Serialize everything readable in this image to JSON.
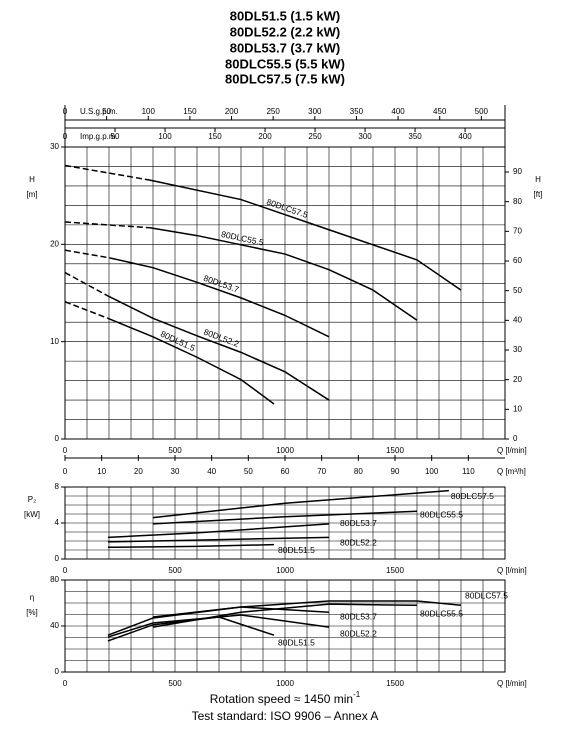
{
  "header": {
    "lines": [
      "80DL51.5 (1.5 kW)",
      "80DL52.2 (2.2 kW)",
      "80DL53.7 (3.7 kW)",
      "80DLC55.5 (5.5 kW)",
      "80DLC57.5 (7.5 kW)"
    ]
  },
  "footer": {
    "line1": "Rotation speed ≈ 1450 min",
    "line1_sup": "-1",
    "line2": "Test standard: ISO 9906 – Annex A"
  },
  "chart_data": [
    {
      "type": "line",
      "ylabel": "H",
      "yunit": "[m]",
      "y2label": "H",
      "y2unit": "[ft]",
      "xlabel": "Q [l/min]",
      "xlim": [
        0,
        2000
      ],
      "xticks": [
        0,
        500,
        1000,
        1500
      ],
      "xgrid": [
        0,
        100,
        200,
        300,
        400,
        500,
        600,
        700,
        800,
        900,
        1000,
        1100,
        1200,
        1300,
        1400,
        1500,
        1600,
        1700,
        1800,
        1900,
        2000
      ],
      "ylim": [
        0,
        30
      ],
      "yticks": [
        0,
        10,
        20,
        30
      ],
      "ygrid": [
        0,
        2,
        4,
        6,
        8,
        10,
        12,
        14,
        16,
        18,
        20,
        22,
        24,
        26,
        28,
        30
      ],
      "y2lim": [
        0,
        98.43
      ],
      "y2ticks": [
        0,
        10,
        20,
        30,
        40,
        50,
        60,
        70,
        80,
        90
      ],
      "top_axes": [
        {
          "label": "U.S.g.p.m.",
          "lim": [
            0,
            528.4
          ],
          "ticks": [
            0,
            50,
            100,
            150,
            200,
            250,
            300,
            350,
            400,
            450,
            500
          ]
        },
        {
          "label": "Imp.g.p.m.",
          "lim": [
            0,
            439.9
          ],
          "ticks": [
            0,
            50,
            100,
            150,
            200,
            250,
            300,
            350,
            400
          ]
        }
      ],
      "x2": {
        "label": "Q [m³/h]",
        "lim": [
          0,
          120
        ],
        "ticks": [
          0,
          10,
          20,
          30,
          40,
          50,
          60,
          70,
          80,
          90,
          100,
          110
        ]
      },
      "line_color": "#000",
      "dashed_points": 2,
      "series": [
        {
          "name": "80DLC57.5",
          "x": [
            0,
            386,
            800,
            1200,
            1600,
            1800
          ],
          "values": [
            28.1,
            26.6,
            24.6,
            21.5,
            18.4,
            15.3
          ]
        },
        {
          "name": "80DLC55.5",
          "x": [
            0,
            386,
            600,
            1000,
            1200,
            1400,
            1600
          ],
          "values": [
            22.3,
            21.7,
            20.9,
            19.0,
            17.4,
            15.3,
            12.2
          ]
        },
        {
          "name": "80DL53.7",
          "x": [
            0,
            205,
            400,
            600,
            800,
            1000,
            1200
          ],
          "values": [
            19.4,
            18.6,
            17.6,
            16.1,
            14.5,
            12.7,
            10.5
          ]
        },
        {
          "name": "80DL52.2",
          "x": [
            0,
            195,
            400,
            600,
            800,
            1000,
            1200
          ],
          "values": [
            17.1,
            14.7,
            12.4,
            10.6,
            8.9,
            6.9,
            4.0
          ]
        },
        {
          "name": "80DL51.5",
          "x": [
            0,
            195,
            400,
            600,
            800,
            950
          ],
          "values": [
            14.1,
            12.4,
            10.5,
            8.4,
            6.1,
            3.6
          ]
        }
      ]
    },
    {
      "type": "line",
      "ylabel": "P₂",
      "yunit": "[kW]",
      "xlabel": "Q [l/min]",
      "xlim": [
        0,
        2000
      ],
      "xticks": [
        0,
        500,
        1000,
        1500
      ],
      "xgrid": [
        0,
        100,
        200,
        300,
        400,
        500,
        600,
        700,
        800,
        900,
        1000,
        1100,
        1200,
        1300,
        1400,
        1500,
        1600,
        1700,
        1800,
        1900,
        2000
      ],
      "ylim": [
        0,
        8
      ],
      "yticks": [
        0,
        4,
        8
      ],
      "ygrid": [
        0,
        1,
        2,
        3,
        4,
        5,
        6,
        7,
        8
      ],
      "line_color": "#000",
      "series": [
        {
          "name": "80DLC57.5",
          "x": [
            400,
            1000,
            1745
          ],
          "values": [
            4.6,
            6.2,
            7.6
          ]
        },
        {
          "name": "80DLC55.5",
          "x": [
            400,
            1000,
            1600
          ],
          "values": [
            3.9,
            4.7,
            5.3
          ]
        },
        {
          "name": "80DL53.7",
          "x": [
            195,
            600,
            1200
          ],
          "values": [
            2.4,
            2.9,
            3.9
          ]
        },
        {
          "name": "80DL52.2",
          "x": [
            195,
            600,
            1200
          ],
          "values": [
            1.9,
            2.1,
            2.4
          ]
        },
        {
          "name": "80DL51.5",
          "x": [
            195,
            600,
            950
          ],
          "values": [
            1.3,
            1.4,
            1.6
          ]
        }
      ]
    },
    {
      "type": "line",
      "ylabel": "η",
      "yunit": "[%]",
      "xlabel": "Q [l/min]",
      "xlim": [
        0,
        2000
      ],
      "xticks": [
        0,
        500,
        1000,
        1500
      ],
      "xgrid": [
        0,
        100,
        200,
        300,
        400,
        500,
        600,
        700,
        800,
        900,
        1000,
        1100,
        1200,
        1300,
        1400,
        1500,
        1600,
        1700,
        1800,
        1900,
        2000
      ],
      "ylim": [
        0,
        80
      ],
      "yticks": [
        0,
        40,
        80
      ],
      "ygrid": [
        0,
        10,
        20,
        30,
        40,
        50,
        60,
        70,
        80
      ],
      "line_color": "#000",
      "series": [
        {
          "name": "80DLC57.5",
          "x": [
            400,
            800,
            1200,
            1600,
            1800
          ],
          "values": [
            47.8,
            56.5,
            61.7,
            61.7,
            58
          ]
        },
        {
          "name": "80DLC55.5",
          "x": [
            400,
            800,
            1200,
            1600
          ],
          "values": [
            39,
            52,
            59,
            58
          ]
        },
        {
          "name": "80DL53.7",
          "x": [
            195,
            400,
            800,
            1200
          ],
          "values": [
            32,
            47,
            56.5,
            52
          ]
        },
        {
          "name": "80DL52.2",
          "x": [
            195,
            400,
            800,
            1200
          ],
          "values": [
            30.4,
            42.6,
            49.6,
            39
          ]
        },
        {
          "name": "80DL51.5",
          "x": [
            195,
            400,
            700,
            950
          ],
          "values": [
            27,
            41,
            47.8,
            32
          ]
        }
      ]
    }
  ]
}
